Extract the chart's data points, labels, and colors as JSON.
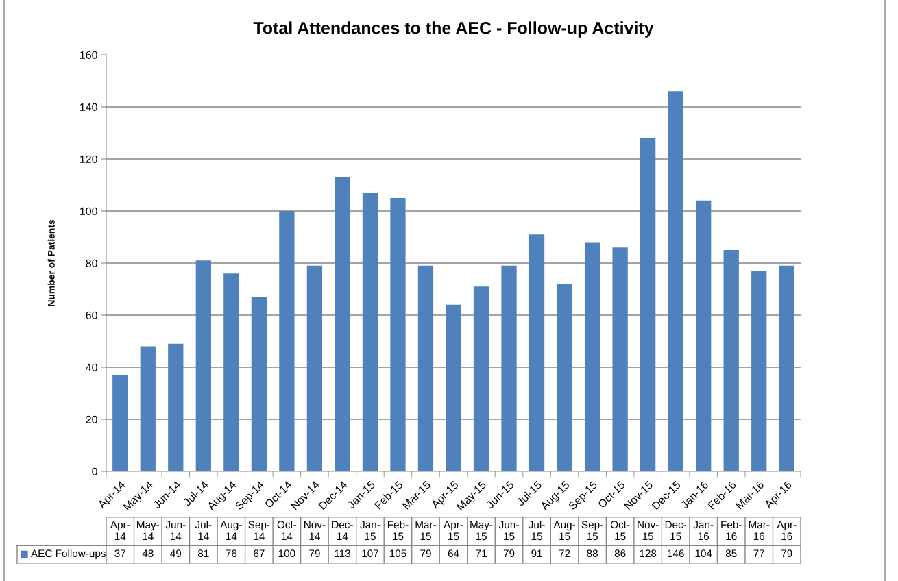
{
  "chart_data": {
    "type": "bar",
    "title": "Total Attendances to the AEC - Follow-up Activity",
    "ylabel": "Number of Patients",
    "categories": [
      "Apr-14",
      "May-14",
      "Jun-14",
      "Jul-14",
      "Aug-14",
      "Sep-14",
      "Oct-14",
      "Nov-14",
      "Dec-14",
      "Jan-15",
      "Feb-15",
      "Mar-15",
      "Apr-15",
      "May-15",
      "Jun-15",
      "Jul-15",
      "Aug-15",
      "Sep-15",
      "Oct-15",
      "Nov-15",
      "Dec-15",
      "Jan-16",
      "Feb-16",
      "Mar-16",
      "Apr-16"
    ],
    "series": [
      {
        "name": "AEC Follow-ups",
        "color": "#4f81bd",
        "values": [
          37,
          48,
          49,
          81,
          76,
          67,
          100,
          79,
          113,
          107,
          105,
          79,
          64,
          71,
          79,
          91,
          72,
          88,
          86,
          128,
          146,
          104,
          85,
          77,
          79
        ]
      }
    ],
    "ylim": [
      0,
      160
    ],
    "yticks": [
      0,
      20,
      40,
      60,
      80,
      100,
      120,
      140,
      160
    ],
    "grid": "y",
    "legend": "bottom",
    "data_labels": true
  }
}
